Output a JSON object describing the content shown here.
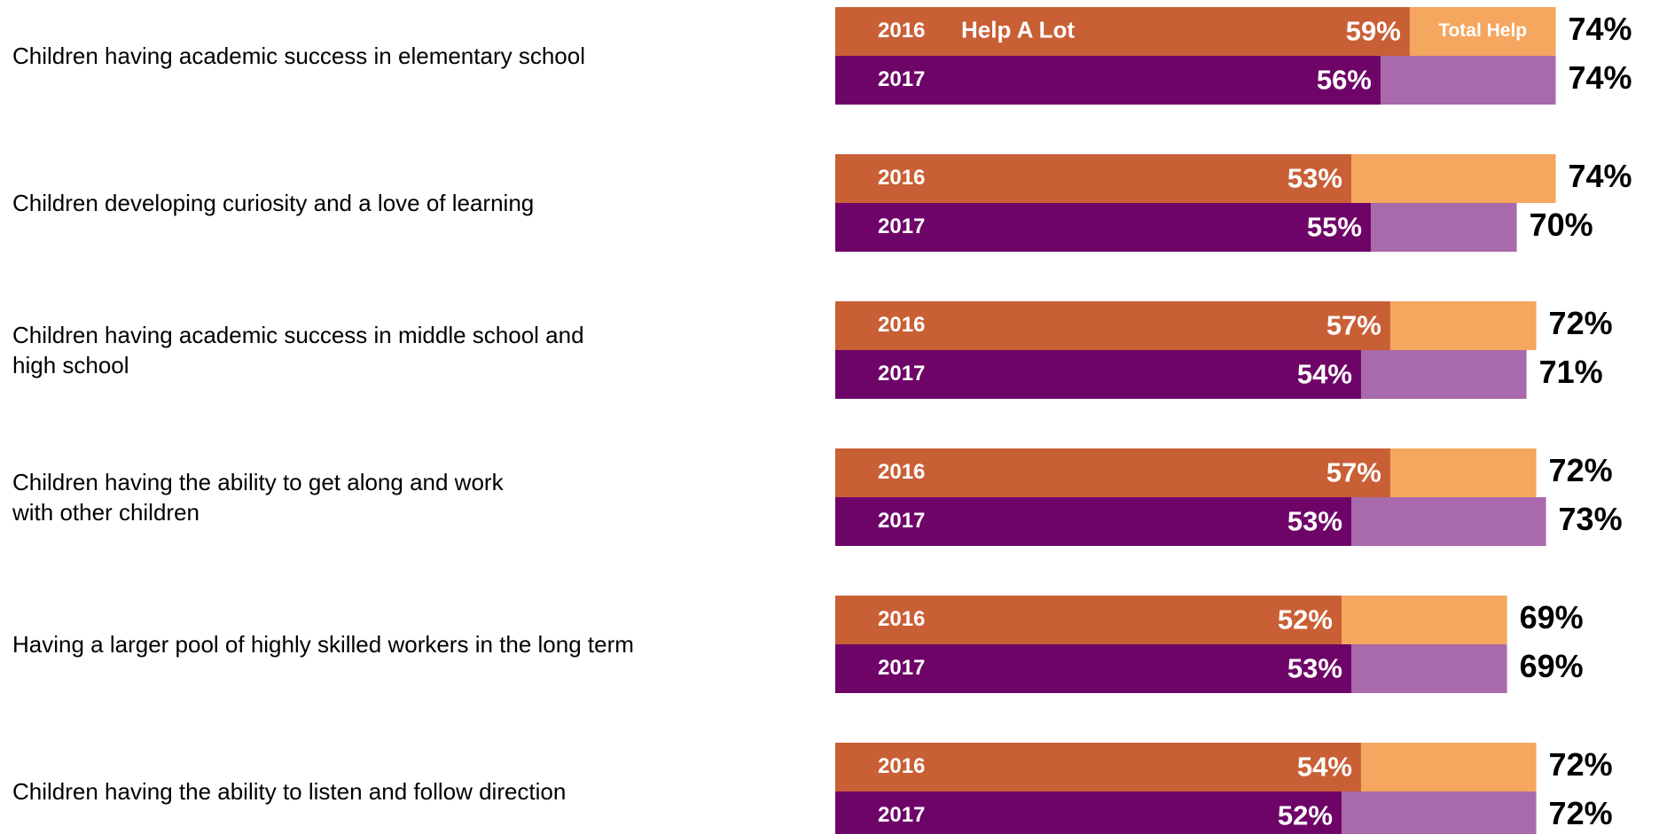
{
  "chart_data": {
    "type": "paired-overlay-bar",
    "categories": [
      "Children having academic success in elementary school",
      "Children developing curiosity and a love of learning",
      "Children having academic success in middle school and\nhigh school",
      "Children having the ability to get along and work\nwith other children",
      "Having a larger pool of highly skilled workers in the long term",
      "Children having the ability to listen and follow direction"
    ],
    "measures": [
      "Help A Lot",
      "Total Help"
    ],
    "series": [
      {
        "name": "2016",
        "color": "#c95f35",
        "total_color": "#f5a65f",
        "help_a_lot": [
          59,
          53,
          57,
          57,
          52,
          54
        ],
        "help_a_lot_labels": [
          "59%",
          "53%",
          "57%",
          "57%",
          "52%",
          "54%"
        ],
        "total_help": [
          74,
          74,
          72,
          72,
          69,
          72
        ],
        "total_help_labels": [
          "74%",
          "74%",
          "72%",
          "72%",
          "69%",
          "72%"
        ]
      },
      {
        "name": "2017",
        "color": "#6e0468",
        "total_color": "#a86aab",
        "help_a_lot": [
          56,
          55,
          54,
          53,
          53,
          52
        ],
        "help_a_lot_labels": [
          "56%",
          "55%",
          "54%",
          "53%",
          "53%",
          "52%"
        ],
        "total_help": [
          74,
          70,
          71,
          73,
          69,
          72
        ],
        "total_help_labels": [
          "74%",
          "70%",
          "71%",
          "73%",
          "69%",
          "72%"
        ]
      }
    ],
    "xlim": [
      0,
      100
    ]
  }
}
